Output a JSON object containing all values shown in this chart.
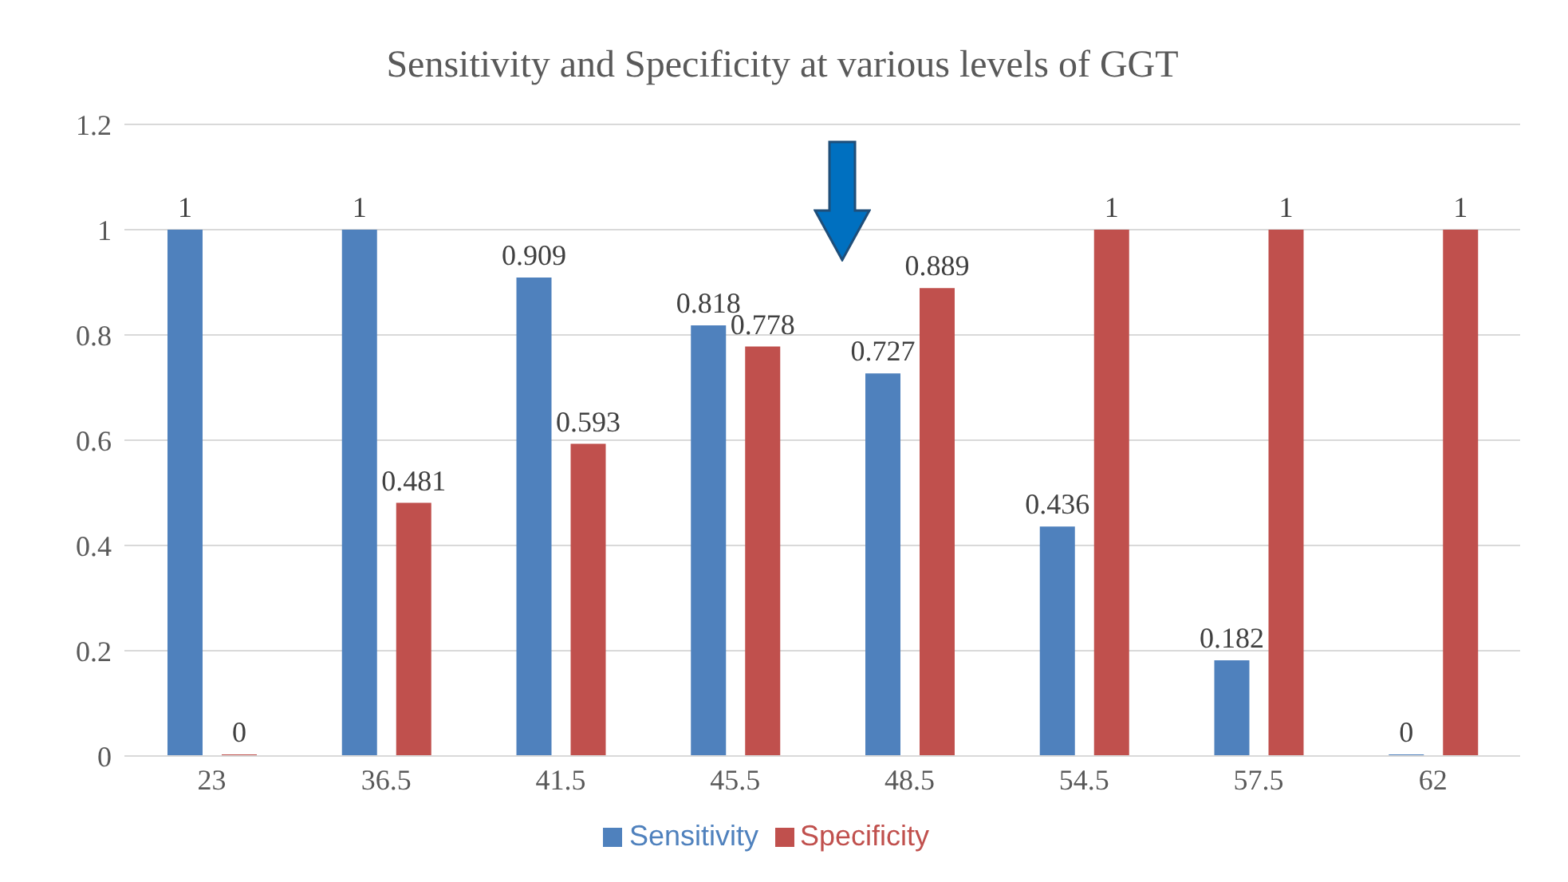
{
  "chart_data": {
    "type": "bar",
    "title": "Sensitivity and Specificity at various levels of GGT",
    "categories": [
      "23",
      "36.5",
      "41.5",
      "45.5",
      "48.5",
      "54.5",
      "57.5",
      "62"
    ],
    "series": [
      {
        "name": "Sensitivity",
        "color": "#4f81bd",
        "values": [
          1,
          1,
          0.909,
          0.818,
          0.727,
          0.436,
          0.182,
          0
        ]
      },
      {
        "name": "Specificity",
        "color": "#c0504d",
        "values": [
          0,
          0.481,
          0.593,
          0.778,
          0.889,
          1,
          1,
          1
        ]
      }
    ],
    "ylim": [
      0,
      1.2
    ],
    "yticks": [
      0,
      0.2,
      0.4,
      0.6,
      0.8,
      1,
      1.2
    ],
    "grid": "y",
    "legend": "bottom",
    "data_labels": true
  }
}
